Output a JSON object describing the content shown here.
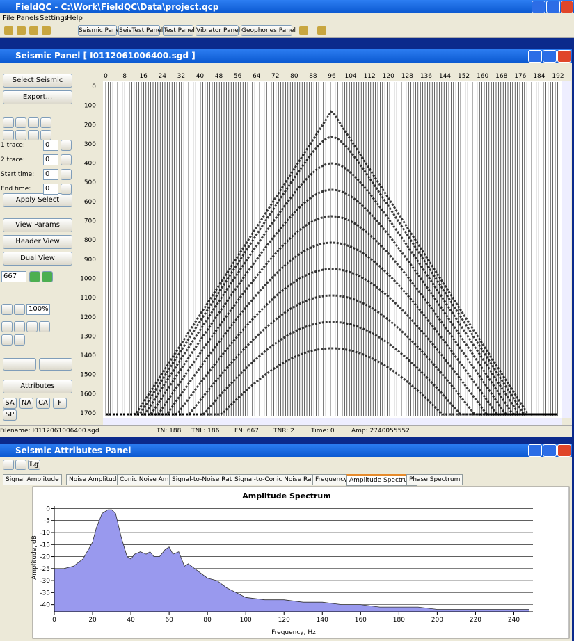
{
  "app": {
    "title": "FieldQC - C:\\Work\\FieldQC\\Data\\project.qcp",
    "menu": [
      "File",
      "Panels",
      "Settings",
      "Help"
    ],
    "toolbar": [
      "Seismic Panel",
      "SeisTest Panel",
      "Test Panel",
      "Vibrator Panel",
      "Geophones Panel"
    ]
  },
  "seismic_panel": {
    "title": "Seismic Panel [ I0112061006400.sgd ]",
    "buttons": [
      "Select Seismic",
      "Export...",
      "Apply Select",
      "View Params",
      "Header View",
      "Dual View",
      "Attributes"
    ],
    "fields": [
      {
        "label": "1 trace:",
        "value": "0"
      },
      {
        "label": "2 trace:",
        "value": "0"
      },
      {
        "label": "Start time:",
        "value": "0"
      },
      {
        "label": "End time:",
        "value": "0"
      }
    ],
    "file_number": "667",
    "zoom": "100%",
    "small_buttons": [
      "SA",
      "NA",
      "CA",
      "F",
      "SP"
    ],
    "xticks": [
      0,
      8,
      16,
      24,
      32,
      40,
      48,
      56,
      64,
      72,
      80,
      88,
      96,
      104,
      112,
      120,
      128,
      136,
      144,
      152,
      160,
      168,
      176,
      184,
      192
    ],
    "yticks": [
      0,
      100,
      200,
      300,
      400,
      500,
      600,
      700,
      800,
      900,
      1000,
      1100,
      1200,
      1300,
      1400,
      1500,
      1600,
      1700
    ],
    "status": [
      "Filename: I0112061006400.sgd",
      "TN: 188",
      "TNL: 186",
      "FN: 667",
      "TNR: 2",
      "Time: 0",
      "Amp: 2740055552"
    ]
  },
  "attributes_panel": {
    "title": "Seismic Attributes Panel",
    "toolbar": [
      "Lg"
    ],
    "tabs": [
      "Signal Amplitude",
      "Noise Amplitude",
      "Conic Noise Amp",
      "Signal-to-Noise Ratio",
      "Signal-to-Conic Noise Ratio",
      "Frequency",
      "Amplitude Spectrum",
      "Phase Spectrum"
    ]
  },
  "chart_data": {
    "type": "area",
    "title": "Amplitude Spectrum",
    "x_label": "Frequency, Hz",
    "y_label": "Amplitude, dB",
    "x": [
      0,
      5,
      10,
      15,
      20,
      22,
      25,
      28,
      30,
      32,
      35,
      38,
      40,
      42,
      45,
      48,
      50,
      52,
      55,
      58,
      60,
      62,
      65,
      68,
      70,
      75,
      80,
      85,
      90,
      95,
      100,
      110,
      120,
      130,
      140,
      150,
      160,
      170,
      180,
      190,
      200,
      210,
      220,
      230,
      240,
      248
    ],
    "values": [
      -25,
      -25,
      -24,
      -21,
      -14,
      -8,
      -2,
      -0.5,
      -0.5,
      -2,
      -12,
      -20,
      -21,
      -19,
      -18,
      -19,
      -18,
      -20,
      -20,
      -17,
      -16,
      -19,
      -18,
      -24,
      -23,
      -26,
      -29,
      -30,
      -33,
      -35,
      -37,
      -38,
      -38,
      -39,
      -39,
      -40,
      -40,
      -41,
      -41,
      -41,
      -42,
      -42,
      -42,
      -42,
      -42,
      -42
    ],
    "color": "#9999ee",
    "xlim": [
      0,
      250
    ],
    "ylim": [
      -43,
      1
    ],
    "xticks": [
      0,
      20,
      40,
      60,
      80,
      100,
      120,
      140,
      160,
      180,
      200,
      220,
      240
    ],
    "yticks": [
      0,
      -5,
      -10,
      -15,
      -20,
      -25,
      -30,
      -35,
      -40
    ],
    "grid": true
  }
}
